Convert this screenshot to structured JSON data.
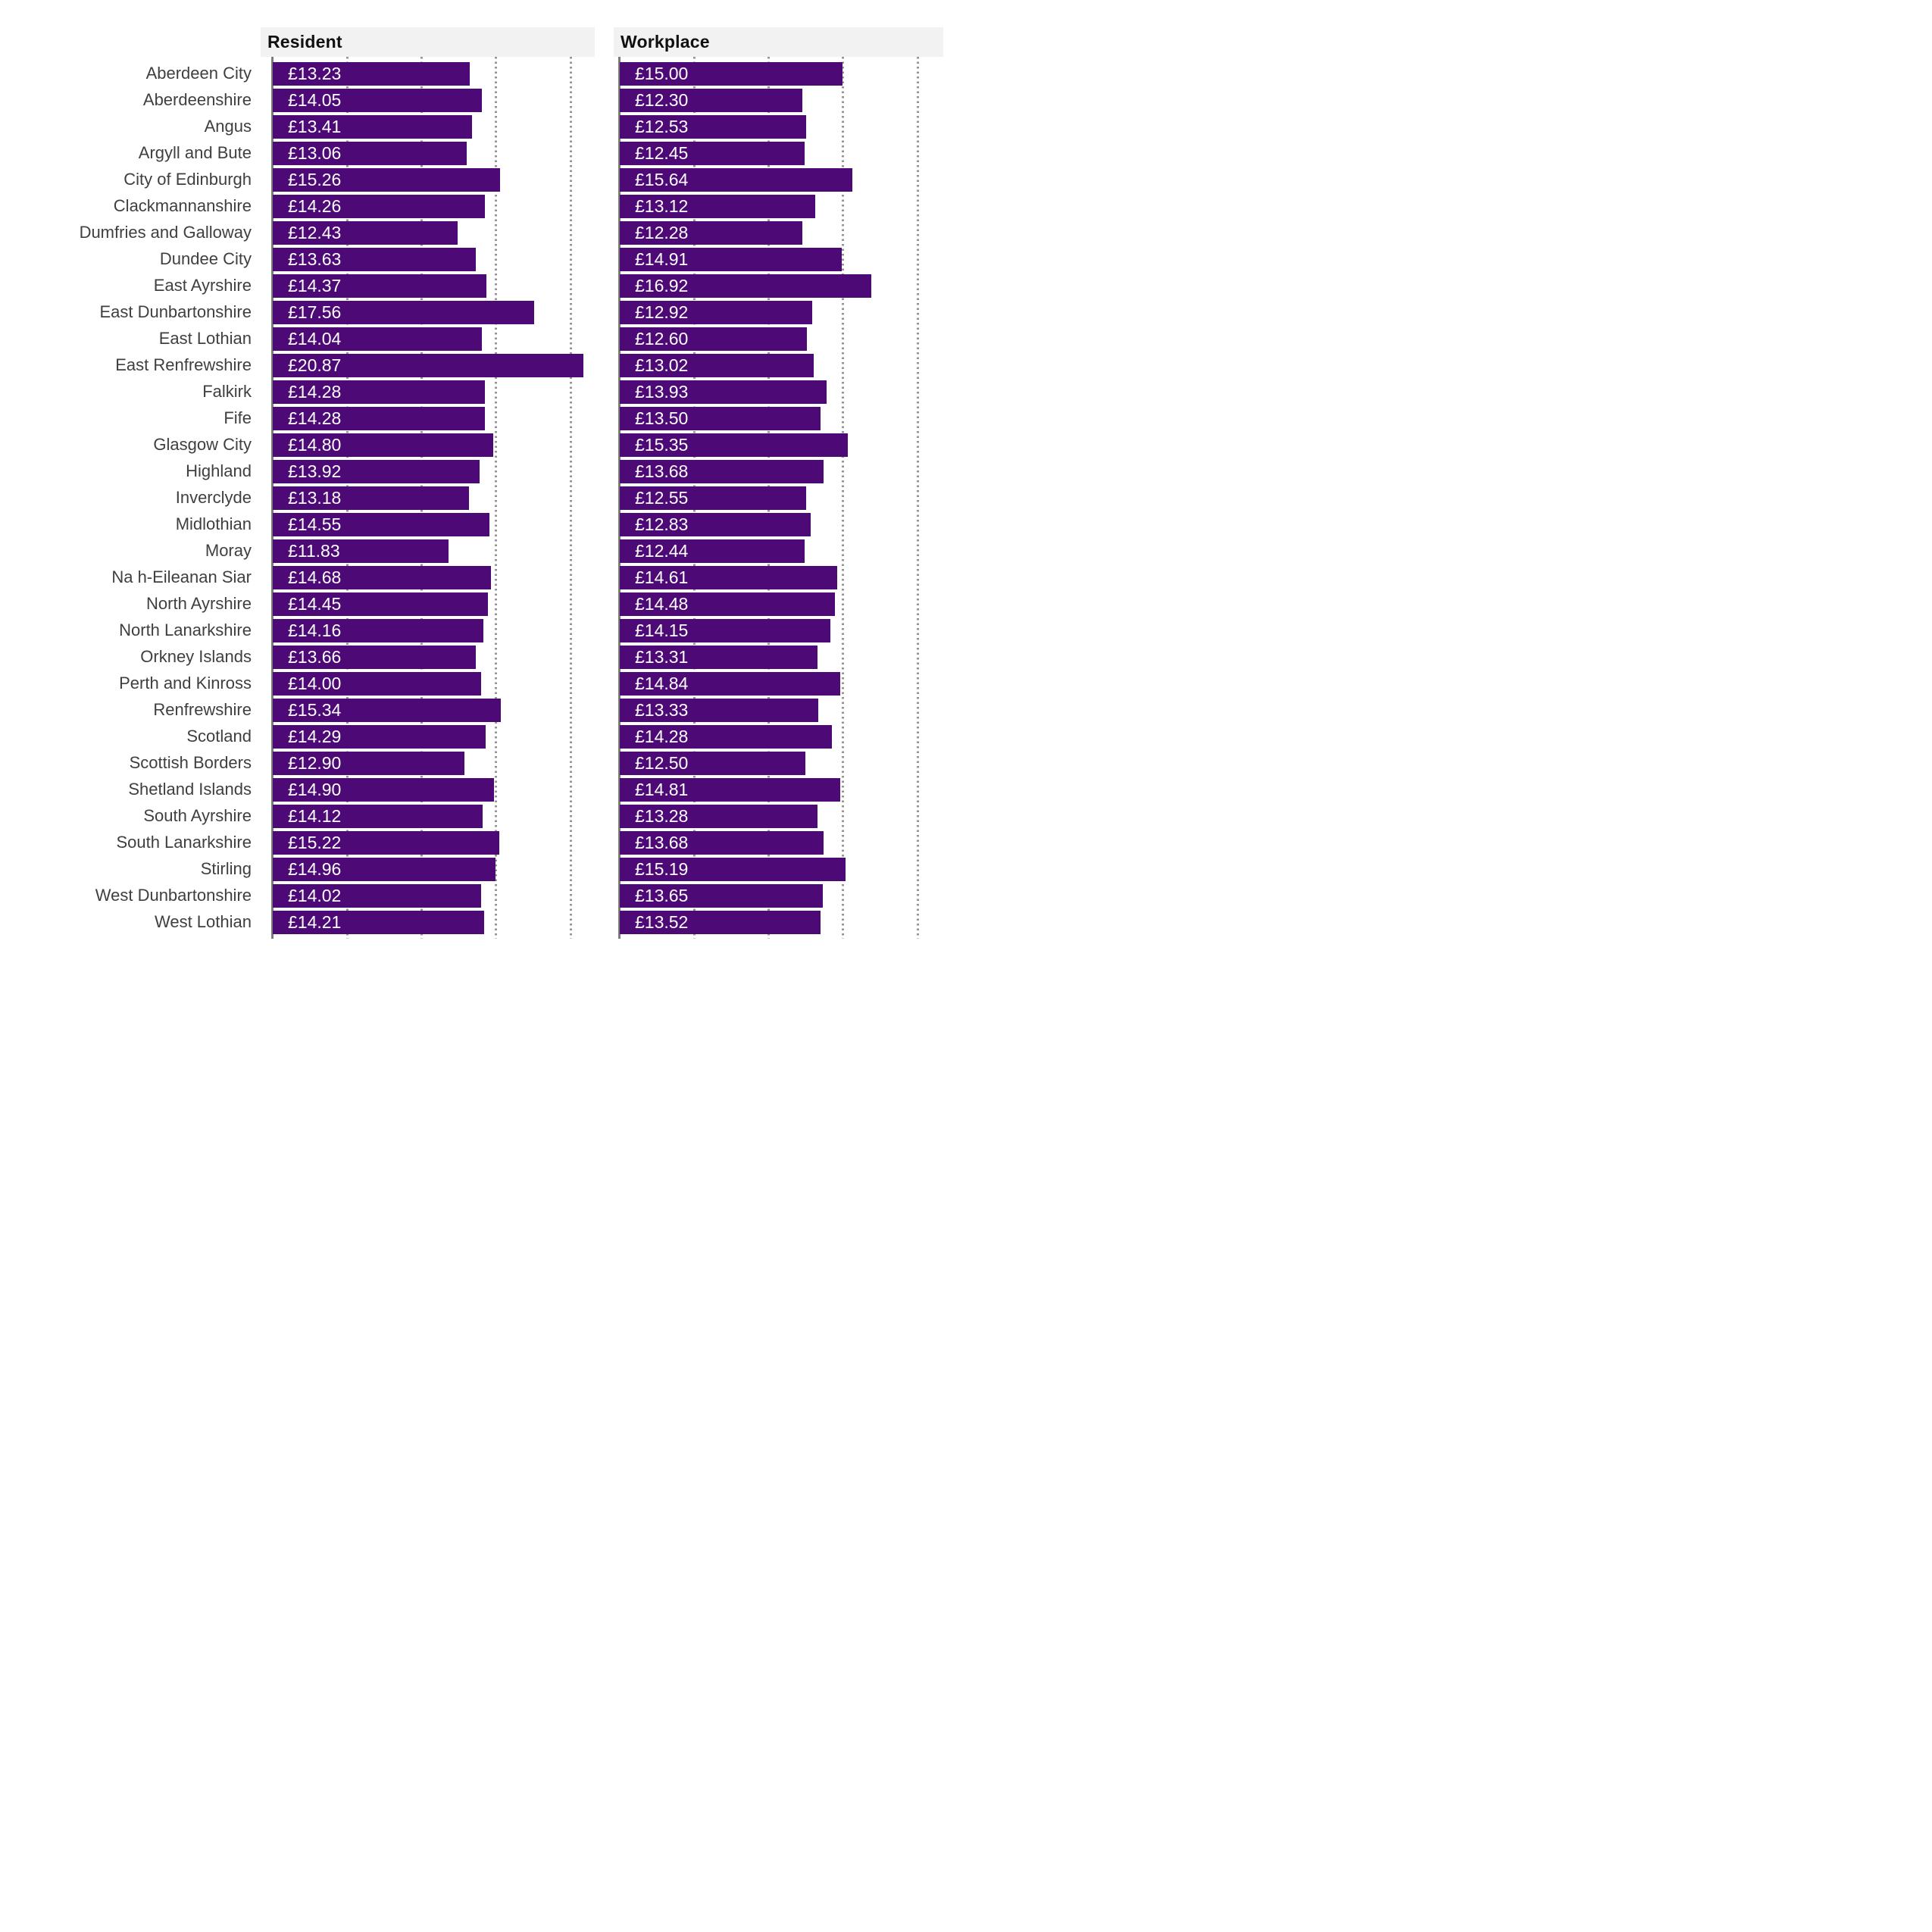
{
  "chart_data": {
    "type": "bar",
    "orientation": "horizontal",
    "title": "",
    "value_prefix": "£",
    "xlim": [
      0,
      21.65
    ],
    "gridline_values": [
      5,
      10,
      15,
      20
    ],
    "legend_position": "none",
    "grid": "dotted-vertical",
    "categories": [
      "Aberdeen City",
      "Aberdeenshire",
      "Angus",
      "Argyll and Bute",
      "City of Edinburgh",
      "Clackmannanshire",
      "Dumfries and Galloway",
      "Dundee City",
      "East Ayrshire",
      "East Dunbartonshire",
      "East Lothian",
      "East Renfrewshire",
      "Falkirk",
      "Fife",
      "Glasgow City",
      "Highland",
      "Inverclyde",
      "Midlothian",
      "Moray",
      "Na h-Eileanan Siar",
      "North Ayrshire",
      "North Lanarkshire",
      "Orkney Islands",
      "Perth and Kinross",
      "Renfrewshire",
      "Scotland",
      "Scottish Borders",
      "Shetland Islands",
      "South Ayrshire",
      "South Lanarkshire",
      "Stirling",
      "West Dunbartonshire",
      "West Lothian"
    ],
    "series": [
      {
        "name": "Resident",
        "values": [
          13.23,
          14.05,
          13.41,
          13.06,
          15.26,
          14.26,
          12.43,
          13.63,
          14.37,
          17.56,
          14.04,
          20.87,
          14.28,
          14.28,
          14.8,
          13.92,
          13.18,
          14.55,
          11.83,
          14.68,
          14.45,
          14.16,
          13.66,
          14.0,
          15.34,
          14.29,
          12.9,
          14.9,
          14.12,
          15.22,
          14.96,
          14.02,
          14.21
        ]
      },
      {
        "name": "Workplace",
        "values": [
          15.0,
          12.3,
          12.53,
          12.45,
          15.64,
          13.12,
          12.28,
          14.91,
          16.92,
          12.92,
          12.6,
          13.02,
          13.93,
          13.5,
          15.35,
          13.68,
          12.55,
          12.83,
          12.44,
          14.61,
          14.48,
          14.15,
          13.31,
          14.84,
          13.33,
          14.28,
          12.5,
          14.81,
          13.28,
          13.68,
          15.19,
          13.65,
          13.52
        ]
      }
    ]
  },
  "panels": [
    {
      "label": "Resident"
    },
    {
      "label": "Workplace"
    }
  ],
  "colors": {
    "bar": "#4d0a76",
    "header_band": "#f2f2f2",
    "axis": "#7b7b7b",
    "gridline": "#949494",
    "row_label_text": "#3f3f41",
    "panel_title_text": "#101010",
    "bar_value_text": "#ffffff"
  }
}
